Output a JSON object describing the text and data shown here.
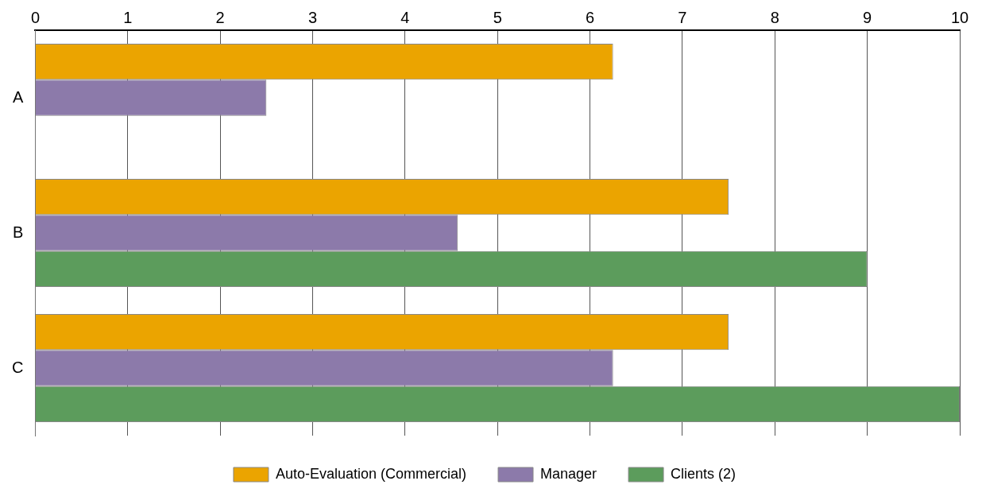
{
  "chart_data": {
    "type": "bar",
    "orientation": "horizontal",
    "categories": [
      "A",
      "B",
      "C"
    ],
    "series": [
      {
        "name": "Auto-Evaluation (Commercial)",
        "color": "#eba400",
        "values": [
          6.25,
          7.5,
          7.5
        ]
      },
      {
        "name": "Manager",
        "color": "#8c7aaa",
        "values": [
          2.5,
          4.57,
          6.25
        ]
      },
      {
        "name": "Clients (2)",
        "color": "#5c9c5c",
        "values": [
          null,
          9,
          10
        ]
      }
    ],
    "xlim": [
      0,
      10
    ],
    "xticks": [
      0,
      1,
      2,
      3,
      4,
      5,
      6,
      7,
      8,
      9,
      10
    ],
    "grid": "x",
    "legend": "bottom"
  }
}
